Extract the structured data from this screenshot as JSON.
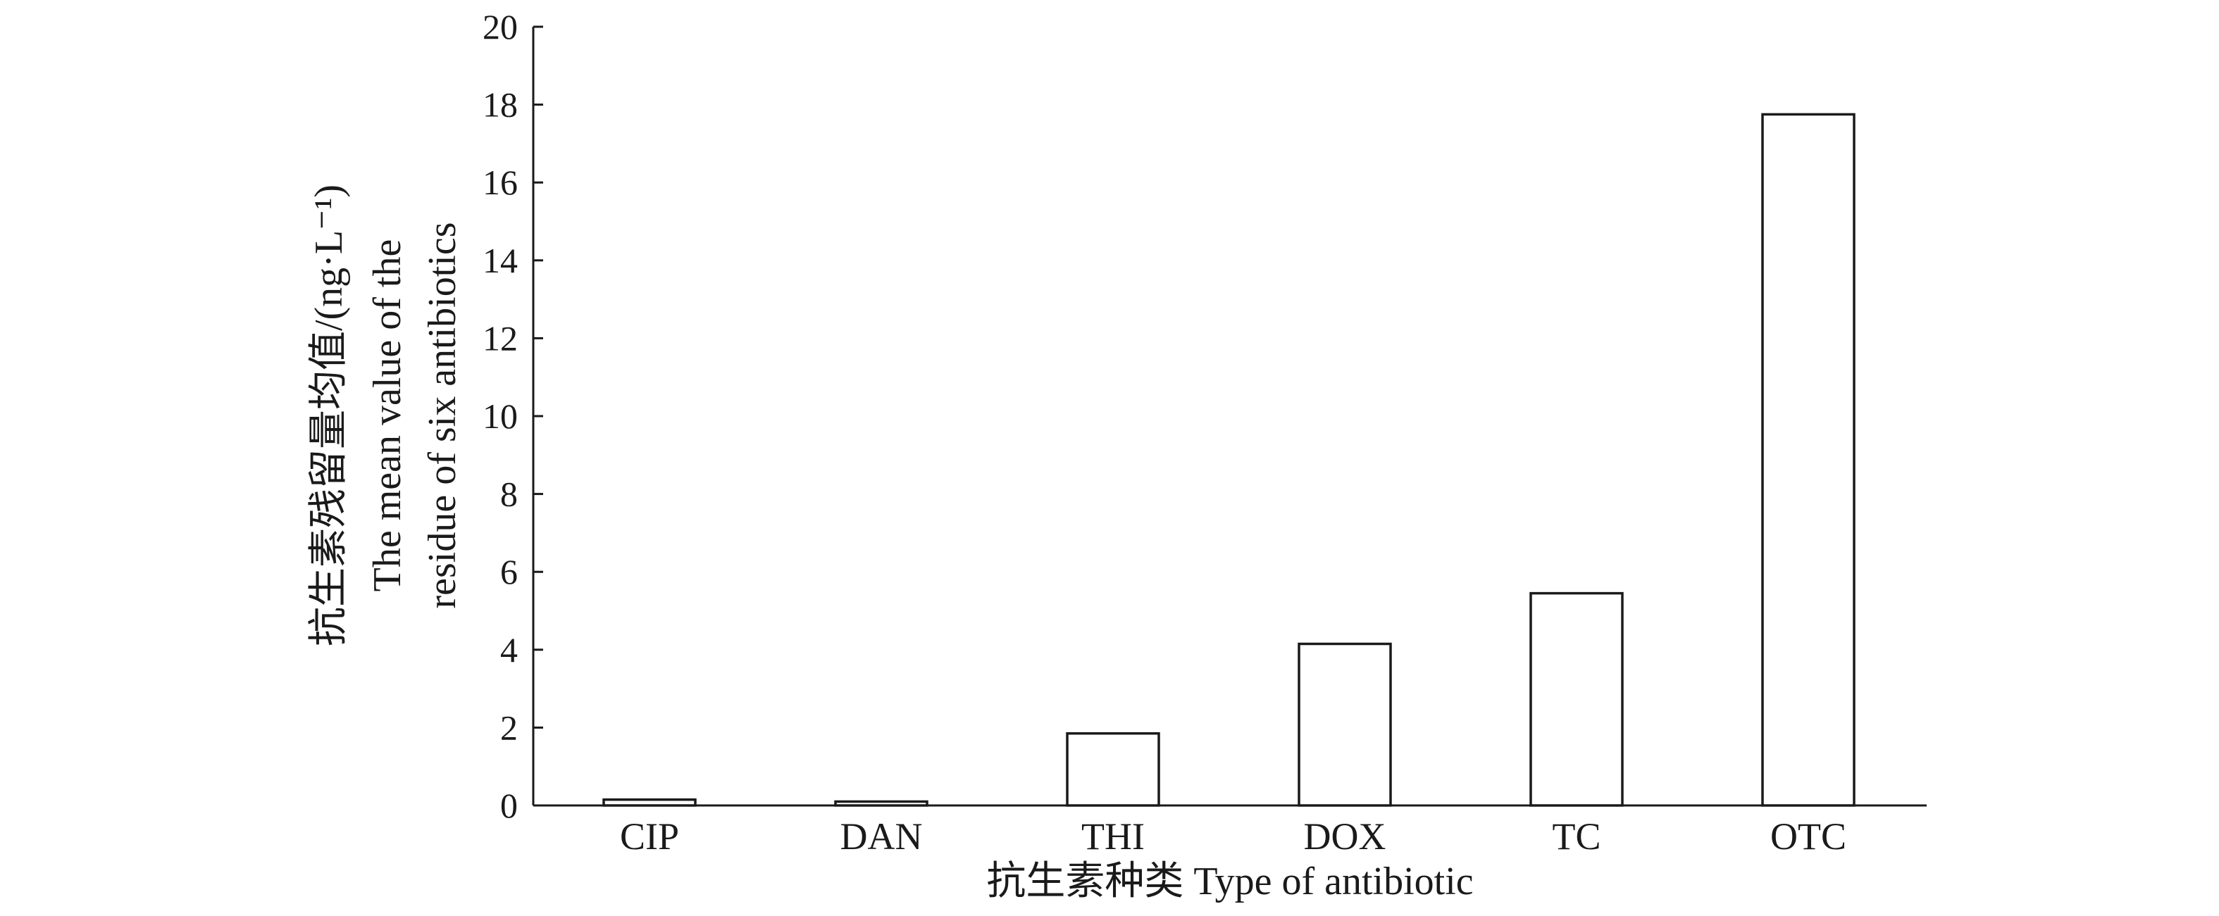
{
  "chart_data": {
    "type": "bar",
    "categories": [
      "CIP",
      "DAN",
      "THI",
      "DOX",
      "TC",
      "OTC"
    ],
    "values": [
      0.15,
      0.1,
      1.85,
      4.15,
      5.45,
      17.75
    ],
    "xlabel": "抗生素种类 Type of antibiotic",
    "ylabel_lines": [
      "抗生素残留量均值/(ng·L⁻¹)",
      "The mean value of the",
      "residue of six antibiotics"
    ],
    "ylim": [
      0,
      20
    ],
    "yticks": [
      0,
      2,
      4,
      6,
      8,
      10,
      12,
      14,
      16,
      18,
      20
    ],
    "grid": false,
    "legend": "none"
  }
}
